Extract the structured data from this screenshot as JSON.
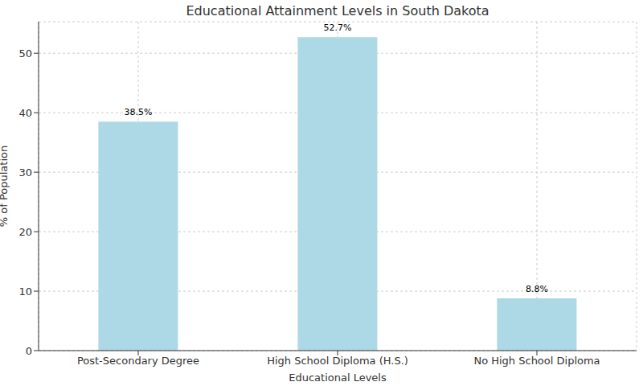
{
  "chart_data": {
    "type": "bar",
    "title": "Educational Attainment Levels in South Dakota",
    "x_label": "Educational Levels",
    "y_label": "% of Population",
    "categories": [
      "Post-Secondary Degree",
      "High School Diploma (H.S.)",
      "No High School Diploma"
    ],
    "values": [
      38.5,
      52.7,
      8.8
    ],
    "value_labels": [
      "38.5%",
      "52.7%",
      "8.8%"
    ],
    "color": "#add8e6",
    "ylim": [
      0,
      55.3
    ],
    "yticks": [
      0,
      10,
      20,
      30,
      40,
      50
    ],
    "grid": true,
    "data_labels": true
  }
}
